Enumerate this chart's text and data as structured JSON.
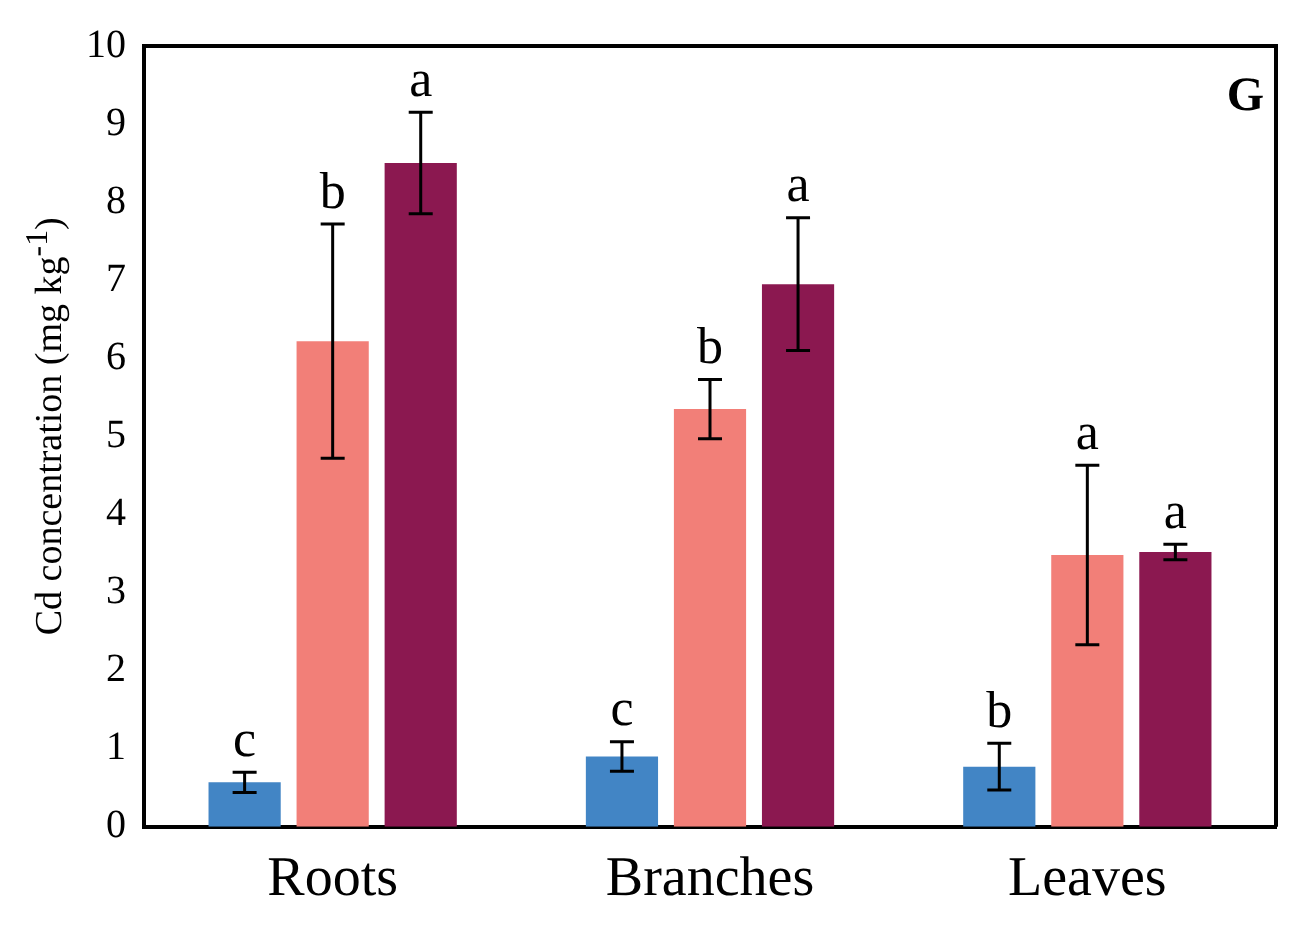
{
  "chart_data": {
    "type": "bar",
    "ylabel": "Cd concentration (mg kg$^{-1}$)",
    "categories": [
      "Roots",
      "Branches",
      "Leaves"
    ],
    "series": [
      {
        "color": "#4285c5",
        "values": [
          0.57,
          0.9,
          0.77
        ],
        "errors": [
          0.13,
          0.19,
          0.3
        ]
      },
      {
        "color": "#f27f78",
        "values": [
          6.22,
          5.35,
          3.48
        ],
        "errors": [
          1.5,
          0.38,
          1.15
        ]
      },
      {
        "color": "#8b1850",
        "values": [
          8.5,
          6.95,
          3.52
        ],
        "errors": [
          0.65,
          0.85,
          0.1
        ]
      }
    ],
    "ylim": [
      0,
      10
    ],
    "yticks": [
      0,
      1,
      2,
      3,
      4,
      5,
      6,
      7,
      8,
      9,
      10
    ],
    "grid": false,
    "legend": false,
    "annotations": [
      "c",
      "b",
      "a",
      "c",
      "b",
      "a",
      "b",
      "a",
      "a",
      "G"
    ]
  }
}
